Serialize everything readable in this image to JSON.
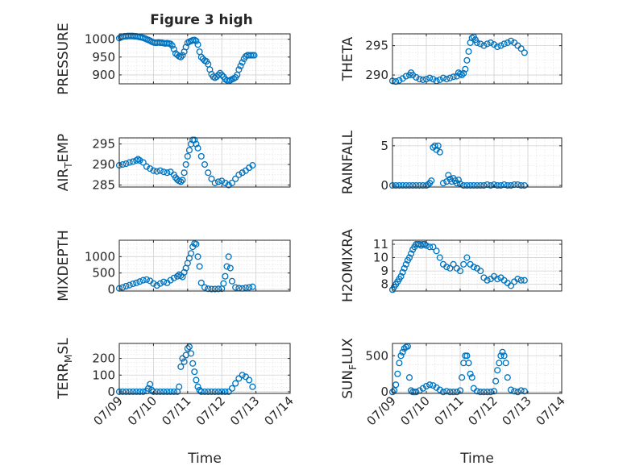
{
  "figure_title": "Figure 3 high",
  "colors": {
    "marker": "#0072BD",
    "axis": "#262626",
    "grid": "#d0d0d0",
    "minor_grid": "#e3e3e3"
  },
  "chart_data": [
    {
      "type": "scatter",
      "title": "Figure 3 high",
      "ylabel": "PRESSURE",
      "xlabel": "",
      "xlim": [
        0,
        5
      ],
      "ylim": [
        875,
        1015
      ],
      "yticks": [
        900,
        950,
        1000
      ],
      "ytick_labels": [
        "900",
        "950",
        "1000"
      ],
      "xticks": [
        0,
        1,
        2,
        3,
        4,
        5
      ],
      "xtick_labels": [],
      "grid": true,
      "minor_grid": true,
      "x": [
        0.0,
        0.05,
        0.1,
        0.15,
        0.2,
        0.25,
        0.3,
        0.35,
        0.4,
        0.45,
        0.5,
        0.55,
        0.6,
        0.65,
        0.7,
        0.75,
        0.8,
        0.85,
        0.9,
        0.95,
        1.0,
        1.05,
        1.1,
        1.15,
        1.2,
        1.25,
        1.3,
        1.35,
        1.4,
        1.45,
        1.5,
        1.55,
        1.6,
        1.65,
        1.7,
        1.75,
        1.8,
        1.85,
        1.9,
        1.95,
        2.0,
        2.05,
        2.1,
        2.15,
        2.2,
        2.25,
        2.3,
        2.35,
        2.4,
        2.45,
        2.5,
        2.55,
        2.6,
        2.65,
        2.7,
        2.75,
        2.8,
        2.85,
        2.9,
        2.95,
        3.0,
        3.05,
        3.1,
        3.15,
        3.2,
        3.25,
        3.3,
        3.35,
        3.4,
        3.45,
        3.5,
        3.55,
        3.6,
        3.65,
        3.7,
        3.75,
        3.8,
        3.85,
        3.9,
        3.95
      ],
      "y": [
        1003,
        1005,
        1007,
        1008,
        1008,
        1009,
        1009,
        1009,
        1009,
        1008,
        1008,
        1007,
        1006,
        1005,
        1004,
        1002,
        1000,
        998,
        996,
        993,
        991,
        990,
        990,
        991,
        990,
        990,
        989,
        988,
        989,
        988,
        987,
        982,
        972,
        960,
        956,
        952,
        950,
        955,
        965,
        978,
        990,
        993,
        995,
        997,
        998,
        995,
        985,
        965,
        950,
        945,
        940,
        938,
        930,
        915,
        902,
        895,
        892,
        895,
        900,
        905,
        900,
        895,
        888,
        885,
        883,
        885,
        888,
        890,
        893,
        900,
        915,
        925,
        935,
        945,
        952,
        955,
        955,
        955,
        955,
        955
      ]
    },
    {
      "type": "scatter",
      "ylabel": "THETA",
      "xlabel": "",
      "xlim": [
        0,
        5
      ],
      "ylim": [
        288.5,
        297
      ],
      "yticks": [
        290,
        295
      ],
      "ytick_labels": [
        "290",
        "295"
      ],
      "xticks": [
        0,
        1,
        2,
        3,
        4,
        5
      ],
      "xtick_labels": [],
      "grid": true,
      "minor_grid": true,
      "x": [
        0.0,
        0.1,
        0.2,
        0.3,
        0.4,
        0.5,
        0.55,
        0.6,
        0.7,
        0.8,
        0.9,
        1.0,
        1.1,
        1.2,
        1.3,
        1.4,
        1.5,
        1.6,
        1.7,
        1.8,
        1.9,
        1.95,
        2.0,
        2.05,
        2.1,
        2.15,
        2.2,
        2.25,
        2.3,
        2.35,
        2.4,
        2.45,
        2.5,
        2.6,
        2.7,
        2.8,
        2.9,
        3.0,
        3.1,
        3.2,
        3.3,
        3.4,
        3.5,
        3.6,
        3.7,
        3.8,
        3.9
      ],
      "y": [
        289.0,
        288.9,
        289.1,
        289.4,
        289.8,
        290.0,
        290.4,
        290.0,
        289.6,
        289.3,
        289.2,
        289.3,
        289.5,
        289.3,
        289.0,
        289.2,
        289.5,
        289.3,
        289.5,
        289.7,
        289.8,
        290.4,
        290.2,
        290.0,
        290.3,
        291.0,
        292.5,
        294.0,
        295.5,
        296.3,
        296.5,
        296.0,
        295.5,
        295.3,
        295.0,
        295.3,
        295.5,
        295.2,
        294.8,
        295.0,
        295.3,
        295.5,
        295.8,
        295.5,
        295.0,
        294.5,
        293.8
      ]
    },
    {
      "type": "scatter",
      "ylabel": "AIR_TEMP",
      "xlabel": "",
      "xlim": [
        0,
        5
      ],
      "ylim": [
        284.5,
        296.5
      ],
      "yticks": [
        285,
        290,
        295
      ],
      "ytick_labels": [
        "285",
        "290",
        "295"
      ],
      "xticks": [
        0,
        1,
        2,
        3,
        4,
        5
      ],
      "xtick_labels": [],
      "grid": true,
      "minor_grid": true,
      "x": [
        0.0,
        0.1,
        0.2,
        0.3,
        0.4,
        0.5,
        0.55,
        0.6,
        0.7,
        0.8,
        0.9,
        1.0,
        1.1,
        1.2,
        1.3,
        1.4,
        1.5,
        1.6,
        1.65,
        1.7,
        1.75,
        1.8,
        1.85,
        1.9,
        1.95,
        2.0,
        2.05,
        2.1,
        2.15,
        2.2,
        2.25,
        2.3,
        2.4,
        2.5,
        2.6,
        2.7,
        2.8,
        2.9,
        3.0,
        3.1,
        3.2,
        3.3,
        3.4,
        3.5,
        3.6,
        3.7,
        3.8,
        3.9
      ],
      "y": [
        289.8,
        290.0,
        290.2,
        290.5,
        290.7,
        291.0,
        291.3,
        291.0,
        290.5,
        289.5,
        289.0,
        288.5,
        288.3,
        288.5,
        288.2,
        288.0,
        288.2,
        287.5,
        286.8,
        286.3,
        286.0,
        285.8,
        286.2,
        288.0,
        290.0,
        292.0,
        293.5,
        295.0,
        296.0,
        296.0,
        295.0,
        294.0,
        292.0,
        290.0,
        288.0,
        286.5,
        285.5,
        285.8,
        286.0,
        285.5,
        285.0,
        285.5,
        286.5,
        287.5,
        288.0,
        288.5,
        289.2,
        289.8
      ]
    },
    {
      "type": "scatter",
      "ylabel": "RAINFALL",
      "xlabel": "",
      "xlim": [
        0,
        5
      ],
      "ylim": [
        -0.2,
        6
      ],
      "yticks": [
        0,
        5
      ],
      "ytick_labels": [
        "0",
        "5"
      ],
      "xticks": [
        0,
        1,
        2,
        3,
        4,
        5
      ],
      "xtick_labels": [],
      "grid": true,
      "minor_grid": true,
      "x": [
        0.0,
        0.1,
        0.2,
        0.3,
        0.4,
        0.5,
        0.6,
        0.7,
        0.8,
        0.9,
        1.0,
        1.05,
        1.1,
        1.15,
        1.2,
        1.25,
        1.3,
        1.35,
        1.4,
        1.5,
        1.6,
        1.65,
        1.7,
        1.75,
        1.8,
        1.85,
        1.9,
        1.95,
        2.0,
        2.1,
        2.2,
        2.3,
        2.4,
        2.5,
        2.6,
        2.7,
        2.8,
        2.9,
        3.0,
        3.1,
        3.2,
        3.3,
        3.4,
        3.5,
        3.6,
        3.7,
        3.8,
        3.9
      ],
      "y": [
        0,
        0,
        0,
        0,
        0,
        0,
        0,
        0,
        0,
        0,
        0,
        0.1,
        0.3,
        0.6,
        4.8,
        5.0,
        4.5,
        5.0,
        4.2,
        0.3,
        0.5,
        1.3,
        0.8,
        0.5,
        0.9,
        0.6,
        0.3,
        0.7,
        0.2,
        0,
        0,
        0,
        0,
        0,
        0,
        0,
        0.1,
        0,
        0.1,
        0,
        0,
        0.1,
        0,
        0,
        0.1,
        0.1,
        0,
        0
      ]
    },
    {
      "type": "scatter",
      "ylabel": "MIXDEPTH",
      "xlabel": "",
      "xlim": [
        0,
        5
      ],
      "ylim": [
        -50,
        1500
      ],
      "yticks": [
        0,
        500,
        1000
      ],
      "ytick_labels": [
        "0",
        "500",
        "1000"
      ],
      "xticks": [
        0,
        1,
        2,
        3,
        4,
        5
      ],
      "xtick_labels": [],
      "grid": true,
      "minor_grid": true,
      "x": [
        0.0,
        0.1,
        0.2,
        0.3,
        0.4,
        0.5,
        0.6,
        0.7,
        0.8,
        0.9,
        1.0,
        1.1,
        1.2,
        1.3,
        1.4,
        1.5,
        1.6,
        1.7,
        1.75,
        1.8,
        1.85,
        1.9,
        1.95,
        2.0,
        2.05,
        2.1,
        2.15,
        2.2,
        2.25,
        2.3,
        2.35,
        2.4,
        2.5,
        2.6,
        2.7,
        2.8,
        2.9,
        3.0,
        3.05,
        3.1,
        3.15,
        3.2,
        3.25,
        3.3,
        3.4,
        3.5,
        3.6,
        3.7,
        3.8,
        3.9
      ],
      "y": [
        30,
        60,
        100,
        130,
        170,
        200,
        240,
        280,
        300,
        260,
        180,
        120,
        180,
        230,
        200,
        280,
        350,
        400,
        450,
        420,
        380,
        520,
        650,
        800,
        950,
        1100,
        1300,
        1400,
        1380,
        1000,
        700,
        200,
        60,
        20,
        10,
        10,
        15,
        20,
        180,
        400,
        700,
        1000,
        650,
        250,
        60,
        40,
        30,
        50,
        60,
        80
      ]
    },
    {
      "type": "scatter",
      "ylabel": "H2OMIXRA",
      "xlabel": "",
      "xlim": [
        0,
        5
      ],
      "ylim": [
        7.5,
        11.3
      ],
      "yticks": [
        8,
        9,
        10,
        11
      ],
      "ytick_labels": [
        "8",
        "9",
        "10",
        "11"
      ],
      "xticks": [
        0,
        1,
        2,
        3,
        4,
        5
      ],
      "xtick_labels": [],
      "grid": true,
      "minor_grid": true,
      "x": [
        0.0,
        0.05,
        0.1,
        0.15,
        0.2,
        0.25,
        0.3,
        0.35,
        0.4,
        0.45,
        0.5,
        0.55,
        0.6,
        0.65,
        0.7,
        0.75,
        0.8,
        0.85,
        0.9,
        0.95,
        1.0,
        1.1,
        1.2,
        1.3,
        1.4,
        1.5,
        1.6,
        1.7,
        1.8,
        1.9,
        2.0,
        2.1,
        2.2,
        2.3,
        2.4,
        2.5,
        2.6,
        2.7,
        2.8,
        2.9,
        3.0,
        3.1,
        3.2,
        3.3,
        3.4,
        3.5,
        3.6,
        3.7,
        3.8,
        3.9
      ],
      "y": [
        7.6,
        7.8,
        8.0,
        8.2,
        8.4,
        8.6,
        8.9,
        9.2,
        9.5,
        9.8,
        10.0,
        10.3,
        10.6,
        10.8,
        11.0,
        11.0,
        11.0,
        10.9,
        11.0,
        11.0,
        10.9,
        10.8,
        10.8,
        10.5,
        10.0,
        9.5,
        9.3,
        9.2,
        9.5,
        9.2,
        9.0,
        9.5,
        10.0,
        9.5,
        9.3,
        9.2,
        9.0,
        8.5,
        8.3,
        8.4,
        8.6,
        8.4,
        8.5,
        8.3,
        8.1,
        7.9,
        8.2,
        8.4,
        8.3,
        8.3
      ]
    },
    {
      "type": "scatter",
      "ylabel": "TERR_MSL",
      "xlabel": "Time",
      "xlim": [
        0,
        5
      ],
      "ylim": [
        -10,
        290
      ],
      "yticks": [
        0,
        100,
        200
      ],
      "ytick_labels": [
        "0",
        "100",
        "200"
      ],
      "xticks": [
        0,
        1,
        2,
        3,
        4,
        5
      ],
      "xtick_labels": [
        "07/09",
        "07/10",
        "07/11",
        "07/12",
        "07/13",
        "07/14"
      ],
      "grid": true,
      "minor_grid": true,
      "x": [
        0.0,
        0.1,
        0.2,
        0.3,
        0.4,
        0.5,
        0.6,
        0.7,
        0.8,
        0.85,
        0.9,
        0.95,
        1.0,
        1.1,
        1.2,
        1.3,
        1.4,
        1.5,
        1.6,
        1.7,
        1.75,
        1.8,
        1.85,
        1.9,
        1.95,
        2.0,
        2.05,
        2.1,
        2.15,
        2.2,
        2.25,
        2.3,
        2.35,
        2.4,
        2.5,
        2.6,
        2.7,
        2.8,
        2.9,
        3.0,
        3.1,
        3.2,
        3.3,
        3.4,
        3.5,
        3.6,
        3.7,
        3.8,
        3.9
      ],
      "y": [
        0,
        0,
        0,
        0,
        0,
        0,
        0,
        0,
        5,
        20,
        45,
        10,
        0,
        0,
        0,
        0,
        0,
        0,
        0,
        0,
        30,
        150,
        200,
        180,
        220,
        260,
        270,
        230,
        170,
        120,
        70,
        30,
        10,
        0,
        0,
        0,
        0,
        0,
        0,
        0,
        0,
        0,
        20,
        50,
        80,
        100,
        90,
        70,
        30
      ]
    },
    {
      "type": "scatter",
      "ylabel": "SUN_FLUX",
      "xlabel": "Time",
      "xlim": [
        0,
        5
      ],
      "ylim": [
        -20,
        670
      ],
      "yticks": [
        0,
        500
      ],
      "ytick_labels": [
        "0",
        "500"
      ],
      "xticks": [
        0,
        1,
        2,
        3,
        4,
        5
      ],
      "xtick_labels": [
        "07/09",
        "07/10",
        "07/11",
        "07/12",
        "07/13",
        "07/14"
      ],
      "grid": true,
      "minor_grid": true,
      "x": [
        0.0,
        0.05,
        0.1,
        0.15,
        0.2,
        0.25,
        0.3,
        0.35,
        0.4,
        0.45,
        0.5,
        0.55,
        0.6,
        0.65,
        0.7,
        0.8,
        0.9,
        1.0,
        1.1,
        1.2,
        1.3,
        1.4,
        1.5,
        1.6,
        1.7,
        1.8,
        1.9,
        2.0,
        2.05,
        2.1,
        2.15,
        2.2,
        2.25,
        2.3,
        2.35,
        2.4,
        2.5,
        2.6,
        2.7,
        2.8,
        2.9,
        3.0,
        3.05,
        3.1,
        3.15,
        3.2,
        3.25,
        3.3,
        3.35,
        3.4,
        3.5,
        3.6,
        3.7,
        3.8,
        3.9
      ],
      "y": [
        0,
        20,
        100,
        250,
        400,
        500,
        550,
        600,
        620,
        630,
        200,
        20,
        0,
        0,
        0,
        20,
        50,
        80,
        100,
        90,
        60,
        30,
        0,
        10,
        0,
        0,
        0,
        20,
        200,
        400,
        500,
        500,
        400,
        250,
        200,
        50,
        10,
        0,
        0,
        0,
        0,
        10,
        150,
        300,
        400,
        500,
        550,
        500,
        400,
        200,
        30,
        10,
        0,
        20,
        10
      ]
    }
  ]
}
